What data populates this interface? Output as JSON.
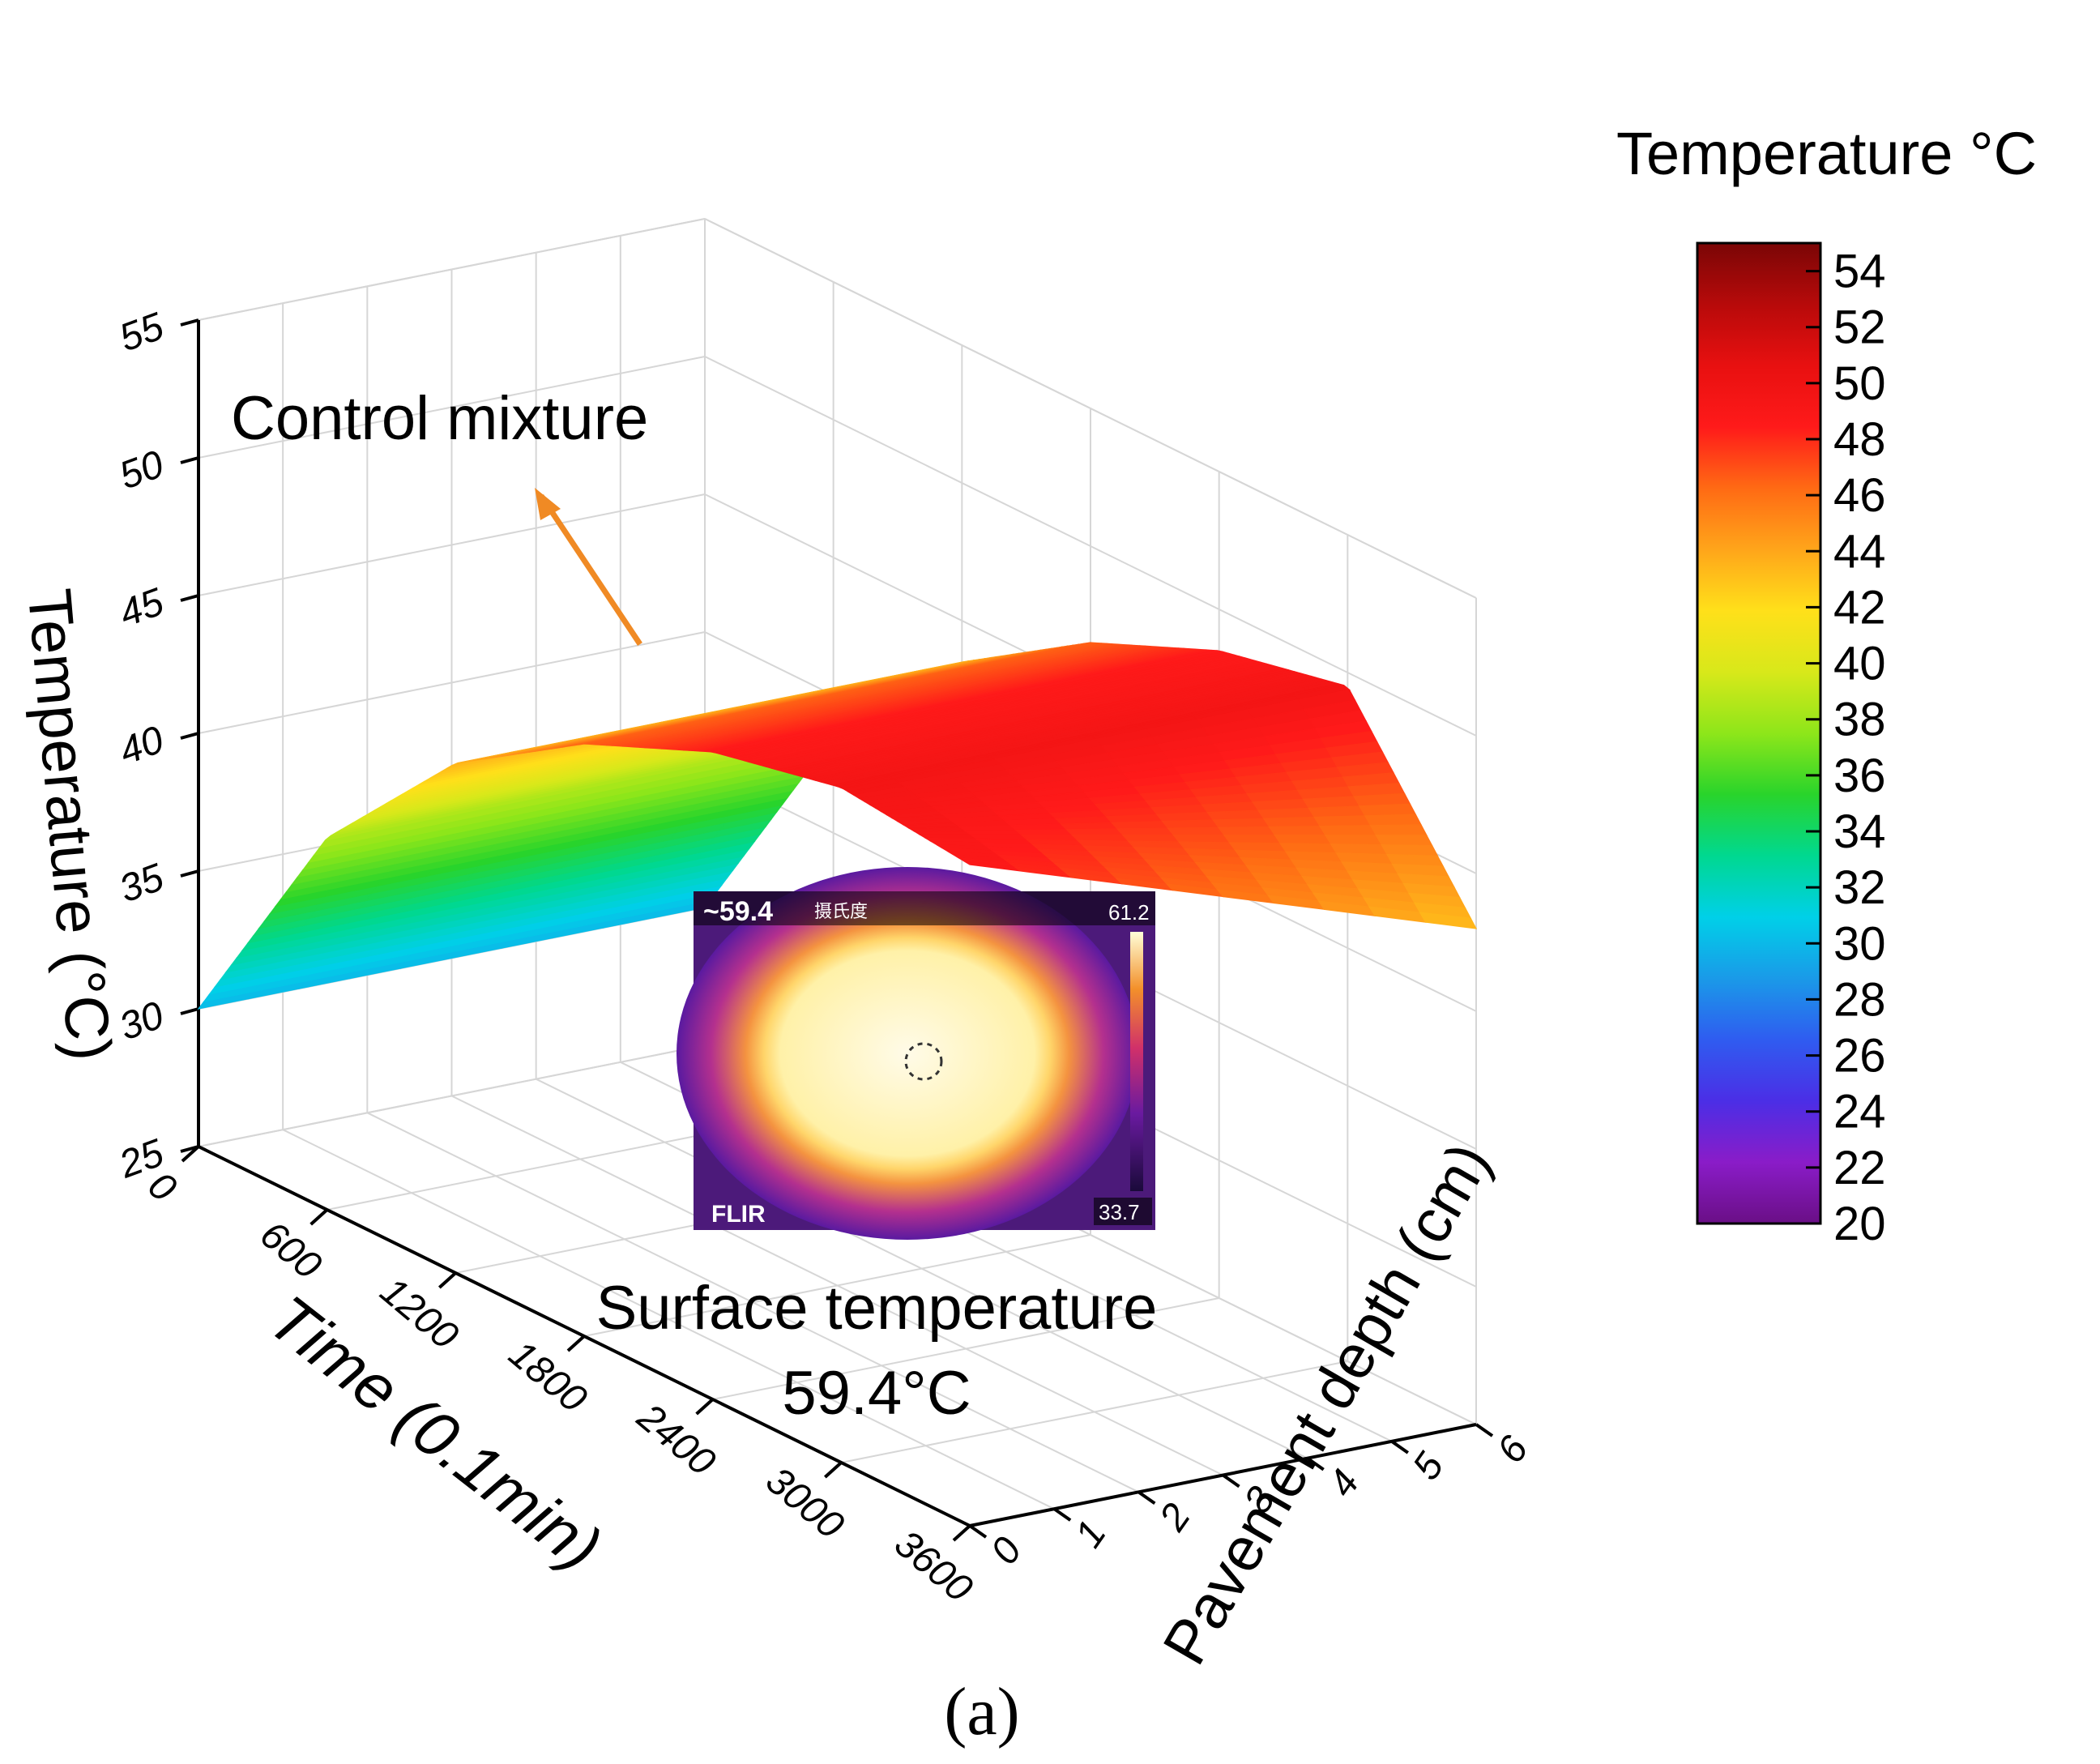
{
  "chart_data": {
    "type": "surface3d",
    "subtitle": "(a)",
    "annotation": "Control mixture",
    "z_axis": {
      "label": "Temperature (°C)",
      "min": 25,
      "max": 55,
      "ticks": [
        "25",
        "30",
        "35",
        "40",
        "45",
        "50",
        "55"
      ]
    },
    "x_axis": {
      "label": "Time (0.1min)",
      "min": 0,
      "max": 3600,
      "ticks": [
        "0",
        "600",
        "1200",
        "1800",
        "2400",
        "3000",
        "3600"
      ]
    },
    "y_axis": {
      "label": "Pavement depth (cm)",
      "min": 0,
      "max": 6,
      "ticks": [
        "0",
        "1",
        "2",
        "3",
        "4",
        "5",
        "6"
      ]
    },
    "colorbar": {
      "title": "Temperature °C",
      "min": 20,
      "max": 55,
      "ticks": [
        "20",
        "22",
        "24",
        "26",
        "28",
        "30",
        "32",
        "34",
        "36",
        "38",
        "40",
        "42",
        "44",
        "46",
        "48",
        "50",
        "52",
        "54"
      ]
    },
    "surface": {
      "description_free": true,
      "time": [
        0,
        600,
        1200,
        1800,
        2400,
        3000,
        3600
      ],
      "depth": [
        0,
        6
      ],
      "temperature_at_depth_0": [
        30,
        38.5,
        43.5,
        46.5,
        48.5,
        49.5,
        49
      ],
      "temperature_at_depth_6": [
        30,
        38.5,
        43.5,
        46.5,
        48.5,
        49.5,
        43
      ]
    },
    "inset": {
      "caption": "Surface temperature",
      "value": "59.4°C",
      "readout": "~59.4",
      "unit_cn": "摄氏度",
      "scale_max": "61.2",
      "scale_min": "33.7",
      "brand": "FLIR"
    }
  },
  "colors": {
    "colormap": [
      "#6a0f86",
      "#8a1cc8",
      "#4b2ee6",
      "#2f5cf0",
      "#1a9ae8",
      "#00d0e8",
      "#00d890",
      "#29d42b",
      "#8ee61a",
      "#d8e81a",
      "#ffe01a",
      "#ffa51a",
      "#ff6a14",
      "#ff1a1a",
      "#e81010",
      "#b70a0a",
      "#7a0606"
    ],
    "arrow": "#f08a24",
    "grid": "#d6d6d6",
    "axis": "#000000"
  }
}
